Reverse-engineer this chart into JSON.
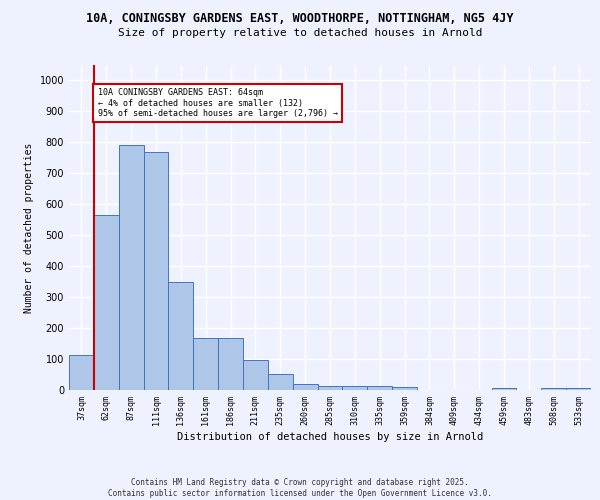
{
  "title_line1": "10A, CONINGSBY GARDENS EAST, WOODTHORPE, NOTTINGHAM, NG5 4JY",
  "title_line2": "Size of property relative to detached houses in Arnold",
  "xlabel": "Distribution of detached houses by size in Arnold",
  "ylabel": "Number of detached properties",
  "categories": [
    "37sqm",
    "62sqm",
    "87sqm",
    "111sqm",
    "136sqm",
    "161sqm",
    "186sqm",
    "211sqm",
    "235sqm",
    "260sqm",
    "285sqm",
    "310sqm",
    "335sqm",
    "359sqm",
    "384sqm",
    "409sqm",
    "434sqm",
    "459sqm",
    "483sqm",
    "508sqm",
    "533sqm"
  ],
  "values": [
    112,
    565,
    793,
    770,
    348,
    168,
    168,
    97,
    52,
    18,
    13,
    12,
    12,
    10,
    0,
    0,
    0,
    5,
    0,
    5,
    5
  ],
  "bar_color": "#aec6e8",
  "bar_edge_color": "#4472c4",
  "annotation_text": "10A CONINGSBY GARDENS EAST: 64sqm\n← 4% of detached houses are smaller (132)\n95% of semi-detached houses are larger (2,796) →",
  "annotation_box_color": "#ffffff",
  "annotation_box_edge_color": "#cc0000",
  "vline_color": "#cc0000",
  "footer_text": "Contains HM Land Registry data © Crown copyright and database right 2025.\nContains public sector information licensed under the Open Government Licence v3.0.",
  "background_color": "#eef2ff",
  "grid_color": "#ffffff",
  "ylim": [
    0,
    1050
  ],
  "yticks": [
    0,
    100,
    200,
    300,
    400,
    500,
    600,
    700,
    800,
    900,
    1000
  ]
}
